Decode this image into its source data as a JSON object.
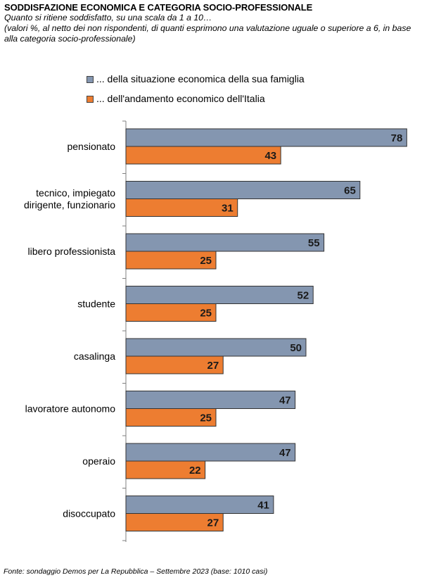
{
  "title": "SODDISFAZIONE ECONOMICA E CATEGORIA SOCIO-PROFESSIONALE",
  "subtitle_line1": "Quanto si ritiene soddisfatto, su una scala da 1 a 10…",
  "subtitle_line2": "(valori %, al netto dei non rispondenti, di quanti esprimono una valutazione uguale o superiore a 6, in base alla categoria socio-professionale)",
  "footer": "Fonte: sondaggio Demos per La Repubblica – Settembre 2023 (base: 1010 casi)",
  "chart_data": {
    "type": "bar",
    "orientation": "horizontal",
    "categories": [
      [
        "pensionato"
      ],
      [
        "tecnico, impiegato",
        "dirigente, funzionario"
      ],
      [
        "libero professionista"
      ],
      [
        "studente"
      ],
      [
        "casalinga"
      ],
      [
        "lavoratore autonomo"
      ],
      [
        "operaio"
      ],
      [
        "disoccupato"
      ]
    ],
    "series": [
      {
        "name": "... della situazione economica della sua famiglia",
        "color": "#8496b0",
        "values": [
          78,
          65,
          55,
          52,
          50,
          47,
          47,
          41
        ]
      },
      {
        "name": "... dell'andamento economico dell'Italia",
        "color": "#ed7d31",
        "values": [
          43,
          31,
          25,
          25,
          27,
          25,
          22,
          27
        ]
      }
    ],
    "xlim": [
      0,
      80
    ],
    "legend_position": "top",
    "grid": false
  }
}
